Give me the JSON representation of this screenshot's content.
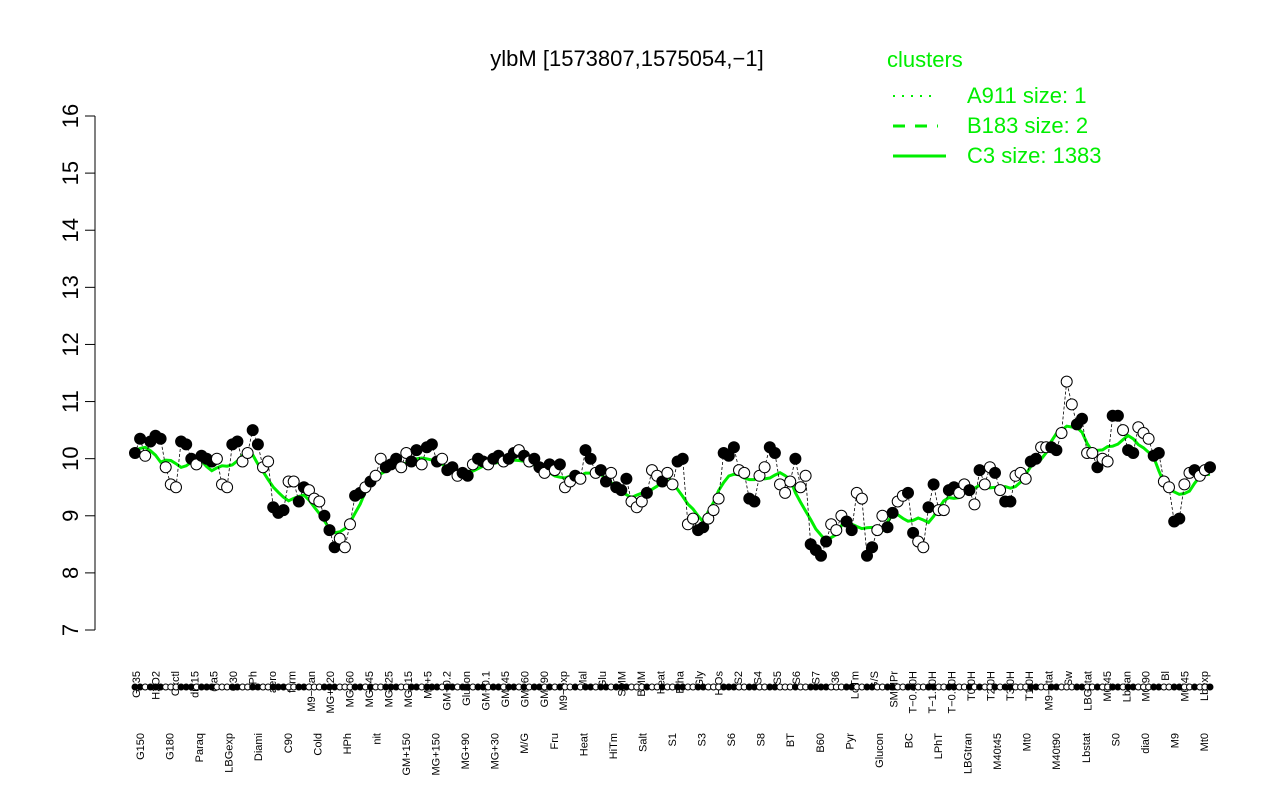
{
  "chart_data": {
    "type": "line",
    "title": "ylbM [1573807,1575054,−1]",
    "xlabel": "",
    "ylabel": "",
    "ylim": [
      7,
      16
    ],
    "yticks": [
      7,
      8,
      9,
      10,
      11,
      12,
      13,
      14,
      15,
      16
    ],
    "line_color": "#00ee00",
    "point_color_dark": "#000000",
    "point_color_light": "#ffffff",
    "legend": {
      "position": "top-right",
      "title": "clusters",
      "entries": [
        {
          "label": "A911 size: 1",
          "style": "dotted"
        },
        {
          "label": "B183 size: 2",
          "style": "dashed"
        },
        {
          "label": "C3 size: 1383",
          "style": "solid"
        }
      ]
    },
    "upper_labels": [
      "G135",
      "H2O2",
      "Oxctl",
      "dia15",
      "dia5",
      "C30",
      "LPh",
      "aero",
      "ferm",
      "M9−tran",
      "MG+120",
      "MG+60",
      "MG+45",
      "MG+25",
      "MG+15",
      "M9+5",
      "GM−0.2",
      "Glucon",
      "GM−0.1",
      "GM+45",
      "GM+60",
      "GM+90",
      "M9−exp",
      "Mal",
      "Glu",
      "SMM",
      "BMM",
      "Heat",
      "Etha",
      "Gly",
      "HiOs",
      "S2",
      "S4",
      "S5",
      "S6",
      "S7",
      "B36",
      "LoTm",
      "G/S",
      "SMMPr",
      "T−0.40H",
      "T−1.10H",
      "T−0.30H",
      "T0.0H",
      "T2.0H",
      "T3.0H",
      "T1.0H",
      "M9−stat",
      "Sw",
      "LBGstat",
      "M0t45",
      "Lbtran",
      "M0t90",
      "Bl",
      "M0t45",
      "Lbexp"
    ],
    "lower_labels": [
      "G150",
      "G180",
      "Paraq",
      "LBGexp",
      "Diami",
      "C90",
      "Cold",
      "HPh",
      "nit",
      "GM+150",
      "MG+150",
      "MG+90",
      "MG+30",
      "M/G",
      "Fru",
      "Heat",
      "HiTm",
      "Salt",
      "S1",
      "S3",
      "S6",
      "S8",
      "BT",
      "B60",
      "Pyr",
      "Glucon",
      "BC",
      "LPhT",
      "LBGtran",
      "M40t45",
      "Mt0",
      "M40t90",
      "Lbstat",
      "S0",
      "dia0",
      "M9",
      "Mt0"
    ],
    "points": [
      {
        "y": 10.1,
        "filled": true
      },
      {
        "y": 10.35,
        "filled": true
      },
      {
        "y": 10.05,
        "filled": false
      },
      {
        "y": 10.3,
        "filled": true
      },
      {
        "y": 10.4,
        "filled": true
      },
      {
        "y": 10.35,
        "filled": true
      },
      {
        "y": 9.85,
        "filled": false
      },
      {
        "y": 9.55,
        "filled": false
      },
      {
        "y": 9.5,
        "filled": false
      },
      {
        "y": 10.3,
        "filled": true
      },
      {
        "y": 10.25,
        "filled": true
      },
      {
        "y": 10.0,
        "filled": true
      },
      {
        "y": 9.9,
        "filled": false
      },
      {
        "y": 10.05,
        "filled": true
      },
      {
        "y": 10.0,
        "filled": true
      },
      {
        "y": 9.95,
        "filled": true
      },
      {
        "y": 10.0,
        "filled": false
      },
      {
        "y": 9.55,
        "filled": false
      },
      {
        "y": 9.5,
        "filled": false
      },
      {
        "y": 10.25,
        "filled": true
      },
      {
        "y": 10.3,
        "filled": true
      },
      {
        "y": 9.95,
        "filled": false
      },
      {
        "y": 10.1,
        "filled": false
      },
      {
        "y": 10.5,
        "filled": true
      },
      {
        "y": 10.25,
        "filled": true
      },
      {
        "y": 9.85,
        "filled": false
      },
      {
        "y": 9.95,
        "filled": false
      },
      {
        "y": 9.15,
        "filled": true
      },
      {
        "y": 9.05,
        "filled": true
      },
      {
        "y": 9.1,
        "filled": true
      },
      {
        "y": 9.6,
        "filled": false
      },
      {
        "y": 9.6,
        "filled": false
      },
      {
        "y": 9.25,
        "filled": true
      },
      {
        "y": 9.5,
        "filled": true
      },
      {
        "y": 9.45,
        "filled": false
      },
      {
        "y": 9.3,
        "filled": false
      },
      {
        "y": 9.25,
        "filled": false
      },
      {
        "y": 9.0,
        "filled": true
      },
      {
        "y": 8.75,
        "filled": true
      },
      {
        "y": 8.45,
        "filled": true
      },
      {
        "y": 8.6,
        "filled": false
      },
      {
        "y": 8.45,
        "filled": false
      },
      {
        "y": 8.85,
        "filled": false
      },
      {
        "y": 9.35,
        "filled": true
      },
      {
        "y": 9.4,
        "filled": true
      },
      {
        "y": 9.5,
        "filled": false
      },
      {
        "y": 9.6,
        "filled": true
      },
      {
        "y": 9.7,
        "filled": false
      },
      {
        "y": 10.0,
        "filled": false
      },
      {
        "y": 9.85,
        "filled": true
      },
      {
        "y": 9.9,
        "filled": true
      },
      {
        "y": 10.0,
        "filled": true
      },
      {
        "y": 9.85,
        "filled": false
      },
      {
        "y": 10.1,
        "filled": false
      },
      {
        "y": 9.95,
        "filled": true
      },
      {
        "y": 10.15,
        "filled": true
      },
      {
        "y": 9.9,
        "filled": false
      },
      {
        "y": 10.2,
        "filled": true
      },
      {
        "y": 10.25,
        "filled": true
      },
      {
        "y": 9.95,
        "filled": true
      },
      {
        "y": 10.0,
        "filled": false
      },
      {
        "y": 9.8,
        "filled": true
      },
      {
        "y": 9.85,
        "filled": true
      },
      {
        "y": 9.7,
        "filled": false
      },
      {
        "y": 9.75,
        "filled": true
      },
      {
        "y": 9.7,
        "filled": true
      },
      {
        "y": 9.9,
        "filled": false
      },
      {
        "y": 10.0,
        "filled": true
      },
      {
        "y": 9.95,
        "filled": true
      },
      {
        "y": 9.9,
        "filled": false
      },
      {
        "y": 10.0,
        "filled": true
      },
      {
        "y": 10.05,
        "filled": true
      },
      {
        "y": 9.95,
        "filled": false
      },
      {
        "y": 10.0,
        "filled": true
      },
      {
        "y": 10.1,
        "filled": true
      },
      {
        "y": 10.15,
        "filled": false
      },
      {
        "y": 10.05,
        "filled": true
      },
      {
        "y": 9.95,
        "filled": false
      },
      {
        "y": 10.0,
        "filled": true
      },
      {
        "y": 9.85,
        "filled": true
      },
      {
        "y": 9.75,
        "filled": false
      },
      {
        "y": 9.9,
        "filled": true
      },
      {
        "y": 9.8,
        "filled": false
      },
      {
        "y": 9.9,
        "filled": true
      },
      {
        "y": 9.5,
        "filled": false
      },
      {
        "y": 9.6,
        "filled": false
      },
      {
        "y": 9.7,
        "filled": true
      },
      {
        "y": 9.65,
        "filled": false
      },
      {
        "y": 10.15,
        "filled": true
      },
      {
        "y": 10.0,
        "filled": true
      },
      {
        "y": 9.75,
        "filled": false
      },
      {
        "y": 9.8,
        "filled": true
      },
      {
        "y": 9.6,
        "filled": true
      },
      {
        "y": 9.75,
        "filled": false
      },
      {
        "y": 9.5,
        "filled": true
      },
      {
        "y": 9.45,
        "filled": true
      },
      {
        "y": 9.65,
        "filled": true
      },
      {
        "y": 9.25,
        "filled": false
      },
      {
        "y": 9.15,
        "filled": false
      },
      {
        "y": 9.25,
        "filled": false
      },
      {
        "y": 9.4,
        "filled": true
      },
      {
        "y": 9.8,
        "filled": false
      },
      {
        "y": 9.7,
        "filled": false
      },
      {
        "y": 9.6,
        "filled": true
      },
      {
        "y": 9.75,
        "filled": false
      },
      {
        "y": 9.55,
        "filled": false
      },
      {
        "y": 9.95,
        "filled": true
      },
      {
        "y": 10.0,
        "filled": true
      },
      {
        "y": 8.85,
        "filled": false
      },
      {
        "y": 8.95,
        "filled": false
      },
      {
        "y": 8.75,
        "filled": true
      },
      {
        "y": 8.8,
        "filled": true
      },
      {
        "y": 8.95,
        "filled": false
      },
      {
        "y": 9.1,
        "filled": false
      },
      {
        "y": 9.3,
        "filled": false
      },
      {
        "y": 10.1,
        "filled": true
      },
      {
        "y": 10.05,
        "filled": true
      },
      {
        "y": 10.2,
        "filled": true
      },
      {
        "y": 9.8,
        "filled": false
      },
      {
        "y": 9.75,
        "filled": false
      },
      {
        "y": 9.3,
        "filled": true
      },
      {
        "y": 9.25,
        "filled": true
      },
      {
        "y": 9.7,
        "filled": false
      },
      {
        "y": 9.85,
        "filled": false
      },
      {
        "y": 10.2,
        "filled": true
      },
      {
        "y": 10.1,
        "filled": true
      },
      {
        "y": 9.55,
        "filled": false
      },
      {
        "y": 9.4,
        "filled": false
      },
      {
        "y": 9.6,
        "filled": false
      },
      {
        "y": 10.0,
        "filled": true
      },
      {
        "y": 9.5,
        "filled": false
      },
      {
        "y": 9.7,
        "filled": false
      },
      {
        "y": 8.5,
        "filled": true
      },
      {
        "y": 8.4,
        "filled": true
      },
      {
        "y": 8.3,
        "filled": true
      },
      {
        "y": 8.55,
        "filled": true
      },
      {
        "y": 8.85,
        "filled": false
      },
      {
        "y": 8.75,
        "filled": false
      },
      {
        "y": 9.0,
        "filled": false
      },
      {
        "y": 8.9,
        "filled": true
      },
      {
        "y": 8.75,
        "filled": true
      },
      {
        "y": 9.4,
        "filled": false
      },
      {
        "y": 9.3,
        "filled": false
      },
      {
        "y": 8.3,
        "filled": true
      },
      {
        "y": 8.45,
        "filled": true
      },
      {
        "y": 8.75,
        "filled": false
      },
      {
        "y": 9.0,
        "filled": false
      },
      {
        "y": 8.8,
        "filled": true
      },
      {
        "y": 9.05,
        "filled": true
      },
      {
        "y": 9.25,
        "filled": false
      },
      {
        "y": 9.35,
        "filled": false
      },
      {
        "y": 9.4,
        "filled": true
      },
      {
        "y": 8.7,
        "filled": true
      },
      {
        "y": 8.55,
        "filled": false
      },
      {
        "y": 8.45,
        "filled": false
      },
      {
        "y": 9.15,
        "filled": true
      },
      {
        "y": 9.55,
        "filled": true
      },
      {
        "y": 9.1,
        "filled": false
      },
      {
        "y": 9.1,
        "filled": false
      },
      {
        "y": 9.45,
        "filled": true
      },
      {
        "y": 9.5,
        "filled": true
      },
      {
        "y": 9.4,
        "filled": false
      },
      {
        "y": 9.55,
        "filled": false
      },
      {
        "y": 9.45,
        "filled": true
      },
      {
        "y": 9.2,
        "filled": false
      },
      {
        "y": 9.8,
        "filled": true
      },
      {
        "y": 9.55,
        "filled": false
      },
      {
        "y": 9.85,
        "filled": false
      },
      {
        "y": 9.75,
        "filled": true
      },
      {
        "y": 9.45,
        "filled": false
      },
      {
        "y": 9.25,
        "filled": true
      },
      {
        "y": 9.25,
        "filled": true
      },
      {
        "y": 9.7,
        "filled": false
      },
      {
        "y": 9.75,
        "filled": false
      },
      {
        "y": 9.65,
        "filled": false
      },
      {
        "y": 9.95,
        "filled": true
      },
      {
        "y": 10.0,
        "filled": true
      },
      {
        "y": 10.2,
        "filled": false
      },
      {
        "y": 10.2,
        "filled": false
      },
      {
        "y": 10.2,
        "filled": true
      },
      {
        "y": 10.15,
        "filled": true
      },
      {
        "y": 10.45,
        "filled": false
      },
      {
        "y": 11.35,
        "filled": false
      },
      {
        "y": 10.95,
        "filled": false
      },
      {
        "y": 10.6,
        "filled": true
      },
      {
        "y": 10.7,
        "filled": true
      },
      {
        "y": 10.1,
        "filled": false
      },
      {
        "y": 10.1,
        "filled": false
      },
      {
        "y": 9.85,
        "filled": true
      },
      {
        "y": 10.0,
        "filled": false
      },
      {
        "y": 9.95,
        "filled": false
      },
      {
        "y": 10.75,
        "filled": true
      },
      {
        "y": 10.75,
        "filled": true
      },
      {
        "y": 10.5,
        "filled": false
      },
      {
        "y": 10.15,
        "filled": true
      },
      {
        "y": 10.1,
        "filled": true
      },
      {
        "y": 10.55,
        "filled": false
      },
      {
        "y": 10.45,
        "filled": false
      },
      {
        "y": 10.35,
        "filled": false
      },
      {
        "y": 10.05,
        "filled": true
      },
      {
        "y": 10.1,
        "filled": true
      },
      {
        "y": 9.6,
        "filled": false
      },
      {
        "y": 9.5,
        "filled": false
      },
      {
        "y": 8.9,
        "filled": true
      },
      {
        "y": 8.95,
        "filled": true
      },
      {
        "y": 9.55,
        "filled": false
      },
      {
        "y": 9.75,
        "filled": false
      },
      {
        "y": 9.8,
        "filled": true
      },
      {
        "y": 9.7,
        "filled": false
      },
      {
        "y": 9.8,
        "filled": false
      },
      {
        "y": 9.85,
        "filled": true
      }
    ]
  }
}
